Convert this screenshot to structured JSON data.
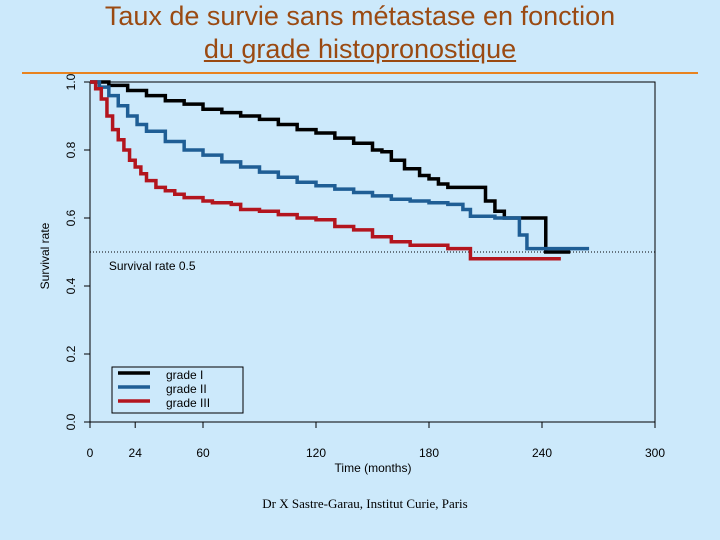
{
  "slide": {
    "title_line1": "Taux de survie sans métastase en fonction",
    "title_line2": "du grade histopronostique",
    "credit": "Dr X Sastre-Garau, Institut Curie, Paris"
  },
  "chart_data": {
    "type": "line",
    "step": true,
    "xlabel": "Time (months)",
    "ylabel": "Survival rate",
    "xlim": [
      0,
      300
    ],
    "ylim": [
      0,
      1
    ],
    "x_ticks": [
      0,
      24,
      60,
      120,
      180,
      240,
      300
    ],
    "y_ticks": [
      "0.0",
      "0.2",
      "0.4",
      "0.6",
      "0.8",
      "1.0"
    ],
    "reference_line": {
      "y": 0.5,
      "label": "Survival rate 0.5"
    },
    "legend_position": "bottom-left",
    "series": [
      {
        "name": "grade I",
        "color": "#000000",
        "points": [
          [
            0,
            1.0
          ],
          [
            10,
            0.99
          ],
          [
            20,
            0.975
          ],
          [
            30,
            0.96
          ],
          [
            40,
            0.945
          ],
          [
            50,
            0.935
          ],
          [
            60,
            0.92
          ],
          [
            70,
            0.91
          ],
          [
            80,
            0.9
          ],
          [
            90,
            0.89
          ],
          [
            100,
            0.875
          ],
          [
            110,
            0.86
          ],
          [
            120,
            0.85
          ],
          [
            130,
            0.835
          ],
          [
            140,
            0.82
          ],
          [
            150,
            0.8
          ],
          [
            155,
            0.795
          ],
          [
            160,
            0.77
          ],
          [
            167,
            0.745
          ],
          [
            175,
            0.725
          ],
          [
            180,
            0.715
          ],
          [
            185,
            0.7
          ],
          [
            190,
            0.69
          ],
          [
            205,
            0.69
          ],
          [
            210,
            0.65
          ],
          [
            215,
            0.62
          ],
          [
            220,
            0.6
          ],
          [
            240,
            0.6
          ],
          [
            242,
            0.5
          ],
          [
            255,
            0.5
          ]
        ]
      },
      {
        "name": "grade II",
        "color": "#1f5e95",
        "points": [
          [
            0,
            1.0
          ],
          [
            5,
            0.985
          ],
          [
            10,
            0.96
          ],
          [
            15,
            0.93
          ],
          [
            20,
            0.9
          ],
          [
            25,
            0.875
          ],
          [
            30,
            0.855
          ],
          [
            40,
            0.825
          ],
          [
            50,
            0.8
          ],
          [
            60,
            0.785
          ],
          [
            70,
            0.765
          ],
          [
            80,
            0.75
          ],
          [
            90,
            0.735
          ],
          [
            100,
            0.72
          ],
          [
            110,
            0.705
          ],
          [
            120,
            0.695
          ],
          [
            130,
            0.685
          ],
          [
            140,
            0.675
          ],
          [
            150,
            0.665
          ],
          [
            160,
            0.655
          ],
          [
            170,
            0.65
          ],
          [
            180,
            0.645
          ],
          [
            190,
            0.64
          ],
          [
            198,
            0.625
          ],
          [
            202,
            0.605
          ],
          [
            215,
            0.6
          ],
          [
            225,
            0.6
          ],
          [
            228,
            0.55
          ],
          [
            232,
            0.51
          ],
          [
            265,
            0.51
          ]
        ]
      },
      {
        "name": "grade III",
        "color": "#b3151e",
        "points": [
          [
            0,
            1.0
          ],
          [
            3,
            0.98
          ],
          [
            6,
            0.95
          ],
          [
            9,
            0.9
          ],
          [
            12,
            0.86
          ],
          [
            15,
            0.83
          ],
          [
            18,
            0.8
          ],
          [
            21,
            0.77
          ],
          [
            24,
            0.75
          ],
          [
            27,
            0.73
          ],
          [
            30,
            0.71
          ],
          [
            35,
            0.69
          ],
          [
            40,
            0.68
          ],
          [
            45,
            0.67
          ],
          [
            50,
            0.66
          ],
          [
            60,
            0.65
          ],
          [
            65,
            0.645
          ],
          [
            75,
            0.64
          ],
          [
            80,
            0.625
          ],
          [
            90,
            0.62
          ],
          [
            100,
            0.61
          ],
          [
            110,
            0.6
          ],
          [
            120,
            0.595
          ],
          [
            130,
            0.575
          ],
          [
            140,
            0.565
          ],
          [
            150,
            0.545
          ],
          [
            160,
            0.53
          ],
          [
            170,
            0.52
          ],
          [
            180,
            0.52
          ],
          [
            190,
            0.51
          ],
          [
            200,
            0.51
          ],
          [
            202,
            0.48
          ],
          [
            250,
            0.48
          ]
        ]
      }
    ]
  }
}
